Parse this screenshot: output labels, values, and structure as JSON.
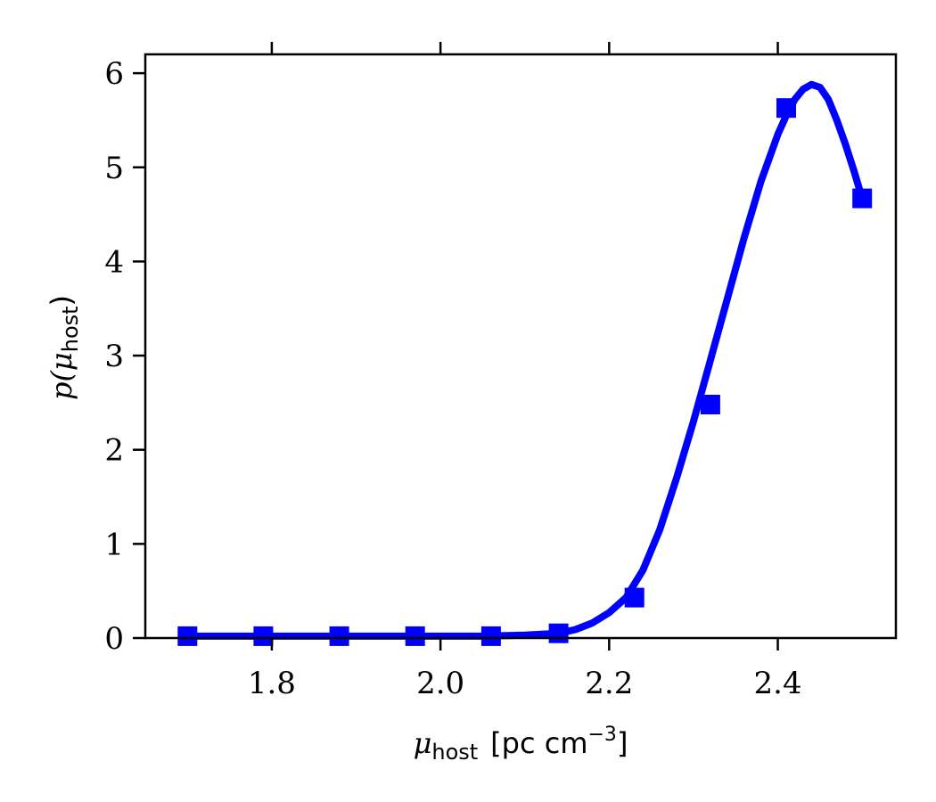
{
  "chart_data": {
    "type": "line",
    "title": "",
    "xlabel": {
      "symbol": "μ",
      "subscript": "host",
      "units_prefix": "[pc cm",
      "units_exponent": "−3",
      "units_suffix": "]"
    },
    "ylabel": {
      "prefix": "p(μ",
      "subscript": "host",
      "suffix": ")"
    },
    "xlim": [
      1.65,
      2.54
    ],
    "ylim": [
      0,
      6.2
    ],
    "xticks": [
      1.8,
      2.0,
      2.2,
      2.4
    ],
    "xtick_labels": [
      "1.8",
      "2.0",
      "2.2",
      "2.4"
    ],
    "yticks": [
      0,
      1,
      2,
      3,
      4,
      5,
      6
    ],
    "ytick_labels": [
      "0",
      "1",
      "2",
      "3",
      "4",
      "5",
      "6"
    ],
    "top_ticks": true,
    "grid": false,
    "legend": "none",
    "series": [
      {
        "style": "line",
        "color": "#0000ff",
        "x": [
          1.7,
          1.8,
          1.9,
          2.0,
          2.05,
          2.1,
          2.14,
          2.16,
          2.18,
          2.2,
          2.22,
          2.24,
          2.26,
          2.28,
          2.3,
          2.32,
          2.34,
          2.36,
          2.38,
          2.4,
          2.41,
          2.42,
          2.43,
          2.44,
          2.45,
          2.46,
          2.47,
          2.48,
          2.49,
          2.5
        ],
        "y": [
          0.02,
          0.02,
          0.02,
          0.02,
          0.02,
          0.03,
          0.05,
          0.09,
          0.16,
          0.27,
          0.43,
          0.72,
          1.15,
          1.7,
          2.3,
          2.95,
          3.6,
          4.25,
          4.85,
          5.35,
          5.55,
          5.72,
          5.83,
          5.88,
          5.85,
          5.72,
          5.5,
          5.25,
          4.97,
          4.67
        ]
      },
      {
        "style": "markers",
        "marker": "square",
        "color": "#0000ff",
        "x": [
          1.7,
          1.79,
          1.88,
          1.97,
          2.06,
          2.14,
          2.23,
          2.32,
          2.41,
          2.5
        ],
        "y": [
          0.02,
          0.02,
          0.02,
          0.02,
          0.02,
          0.05,
          0.43,
          2.48,
          5.63,
          4.67
        ]
      }
    ]
  }
}
